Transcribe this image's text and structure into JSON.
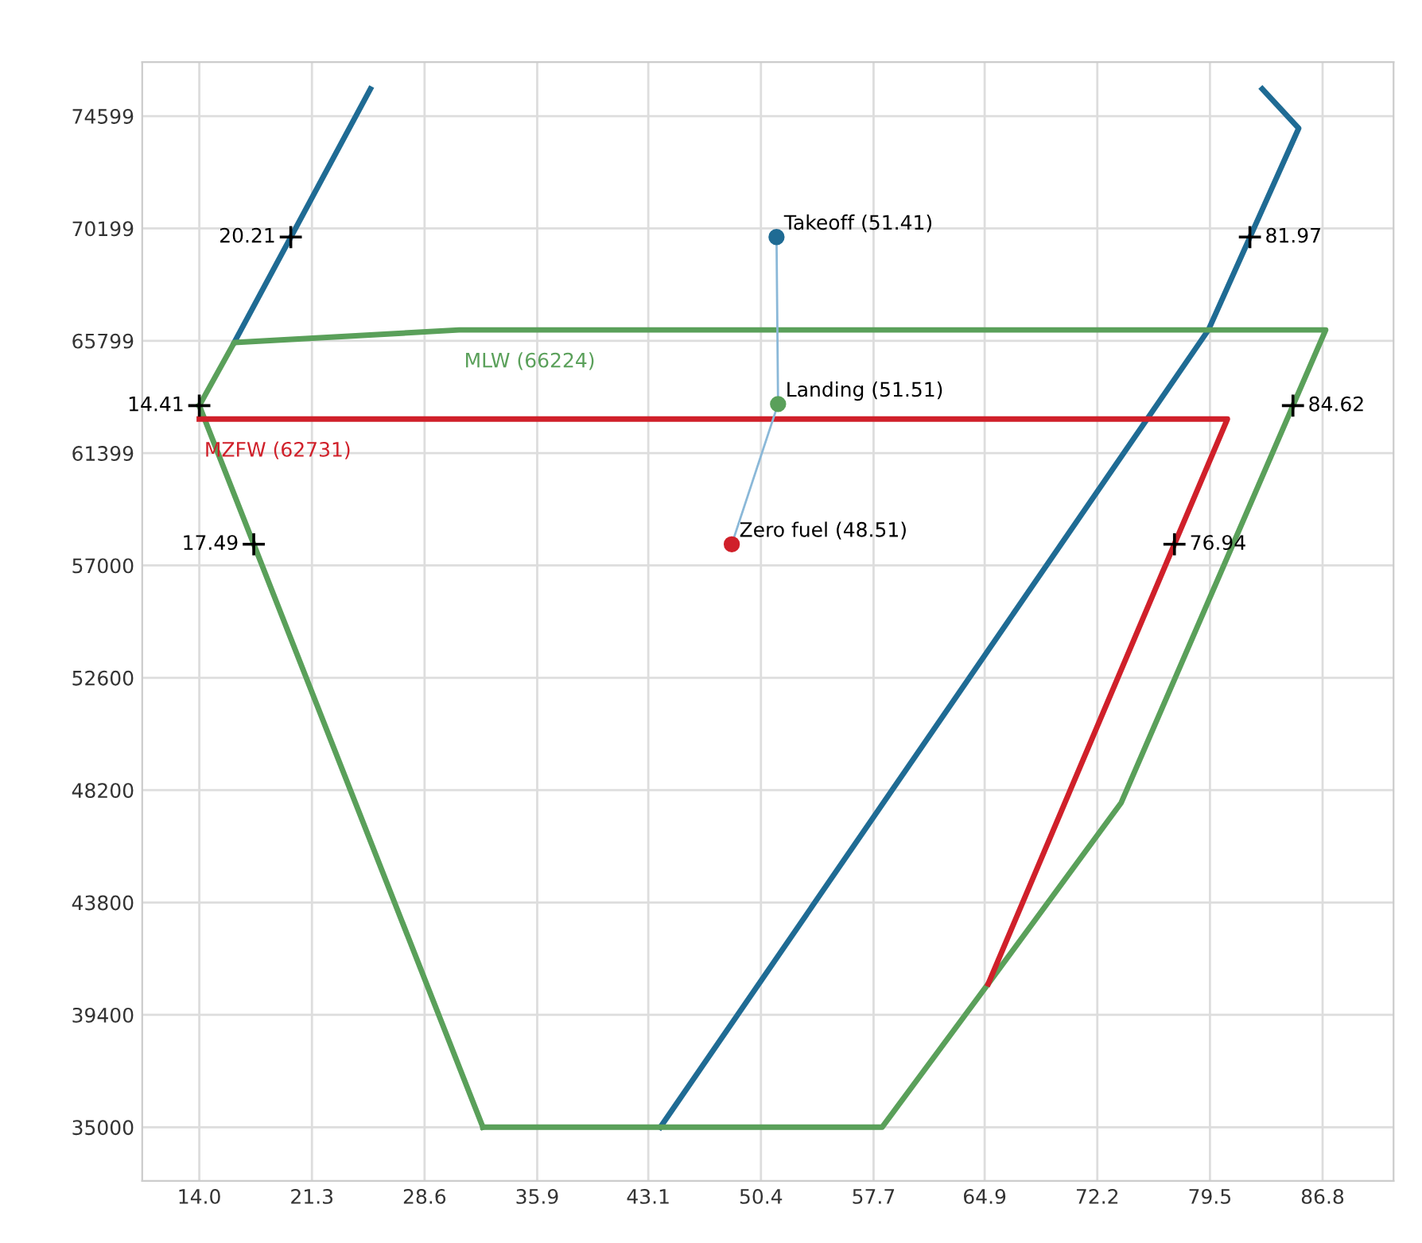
{
  "chart_data": {
    "type": "line",
    "grid": true,
    "line_style": "solid",
    "xlim": [
      10.3,
      91.4
    ],
    "ylim": [
      32900,
      76710
    ],
    "xticks": [
      {
        "value": 14.0,
        "label": "14.0"
      },
      21.3,
      28.6,
      35.9,
      43.1,
      50.4,
      57.7,
      64.9,
      72.2,
      79.5,
      86.8
    ],
    "yticks": [
      35000,
      39400,
      43800,
      48200,
      52600,
      57000,
      61399,
      65799,
      70199,
      74599
    ],
    "series": [
      {
        "color": "#1f6b94",
        "x": [
          25.09,
          16.26
        ],
        "values": [
          75660,
          65727
        ]
      },
      {
        "color": "#1f6b94",
        "x": [
          43.88,
          79.4,
          85.25,
          82.89
        ],
        "values": [
          35000,
          66224,
          74118,
          75660
        ]
      },
      {
        "color": "#5aa05a",
        "x": [
          14.0,
          16.26,
          30.84,
          87.0,
          73.75,
          65.13,
          58.25,
          32.38
        ],
        "values": [
          63259,
          65727,
          66224,
          66224,
          47710,
          40615,
          35000,
          35000
        ]
      },
      {
        "color": "#5aa05a",
        "x": [
          32.38,
          14.0
        ],
        "values": [
          35000,
          63259
        ]
      },
      {
        "color": "#d0202a",
        "x": [
          14.0,
          80.63,
          65.13
        ],
        "values": [
          62731,
          62731,
          40615
        ]
      },
      {
        "color": "#8ab8d8",
        "x": [
          51.41,
          51.51,
          48.51
        ],
        "values": [
          69860,
          63320,
          57830
        ]
      },
      {
        "type": "scatter",
        "marker": "circle",
        "color": "#1f6b94",
        "x": [
          51.41
        ],
        "values": [
          69860
        ]
      },
      {
        "type": "scatter",
        "marker": "circle",
        "color": "#5aa05a",
        "x": [
          51.51
        ],
        "values": [
          63320
        ]
      },
      {
        "type": "scatter",
        "marker": "circle",
        "color": "#d0202a",
        "x": [
          48.51
        ],
        "values": [
          57830
        ]
      }
    ],
    "annotations": [
      {
        "text": "MLW (66224)",
        "x": 30.84,
        "y": 66224
      },
      {
        "text": "MZFW (62731)",
        "x": 14.0,
        "y": 62731
      },
      {
        "text": "Takeoff (51.41)",
        "x": 51.41,
        "y": 69860
      },
      {
        "text": "Landing (51.51)",
        "x": 51.51,
        "y": 63320
      },
      {
        "text": "Zero fuel (48.51)",
        "x": 48.51,
        "y": 57830
      },
      {
        "text": "20.21",
        "x": 19.93,
        "y": 69860
      },
      {
        "text": "81.97",
        "x": 82.09,
        "y": 69860
      },
      {
        "text": "14.41",
        "x": 14.0,
        "y": 63259
      },
      {
        "text": "84.62",
        "x": 84.88,
        "y": 63259
      },
      {
        "text": "17.49",
        "x": 17.53,
        "y": 57830
      },
      {
        "text": "76.94",
        "x": 77.2,
        "y": 57830
      }
    ]
  }
}
